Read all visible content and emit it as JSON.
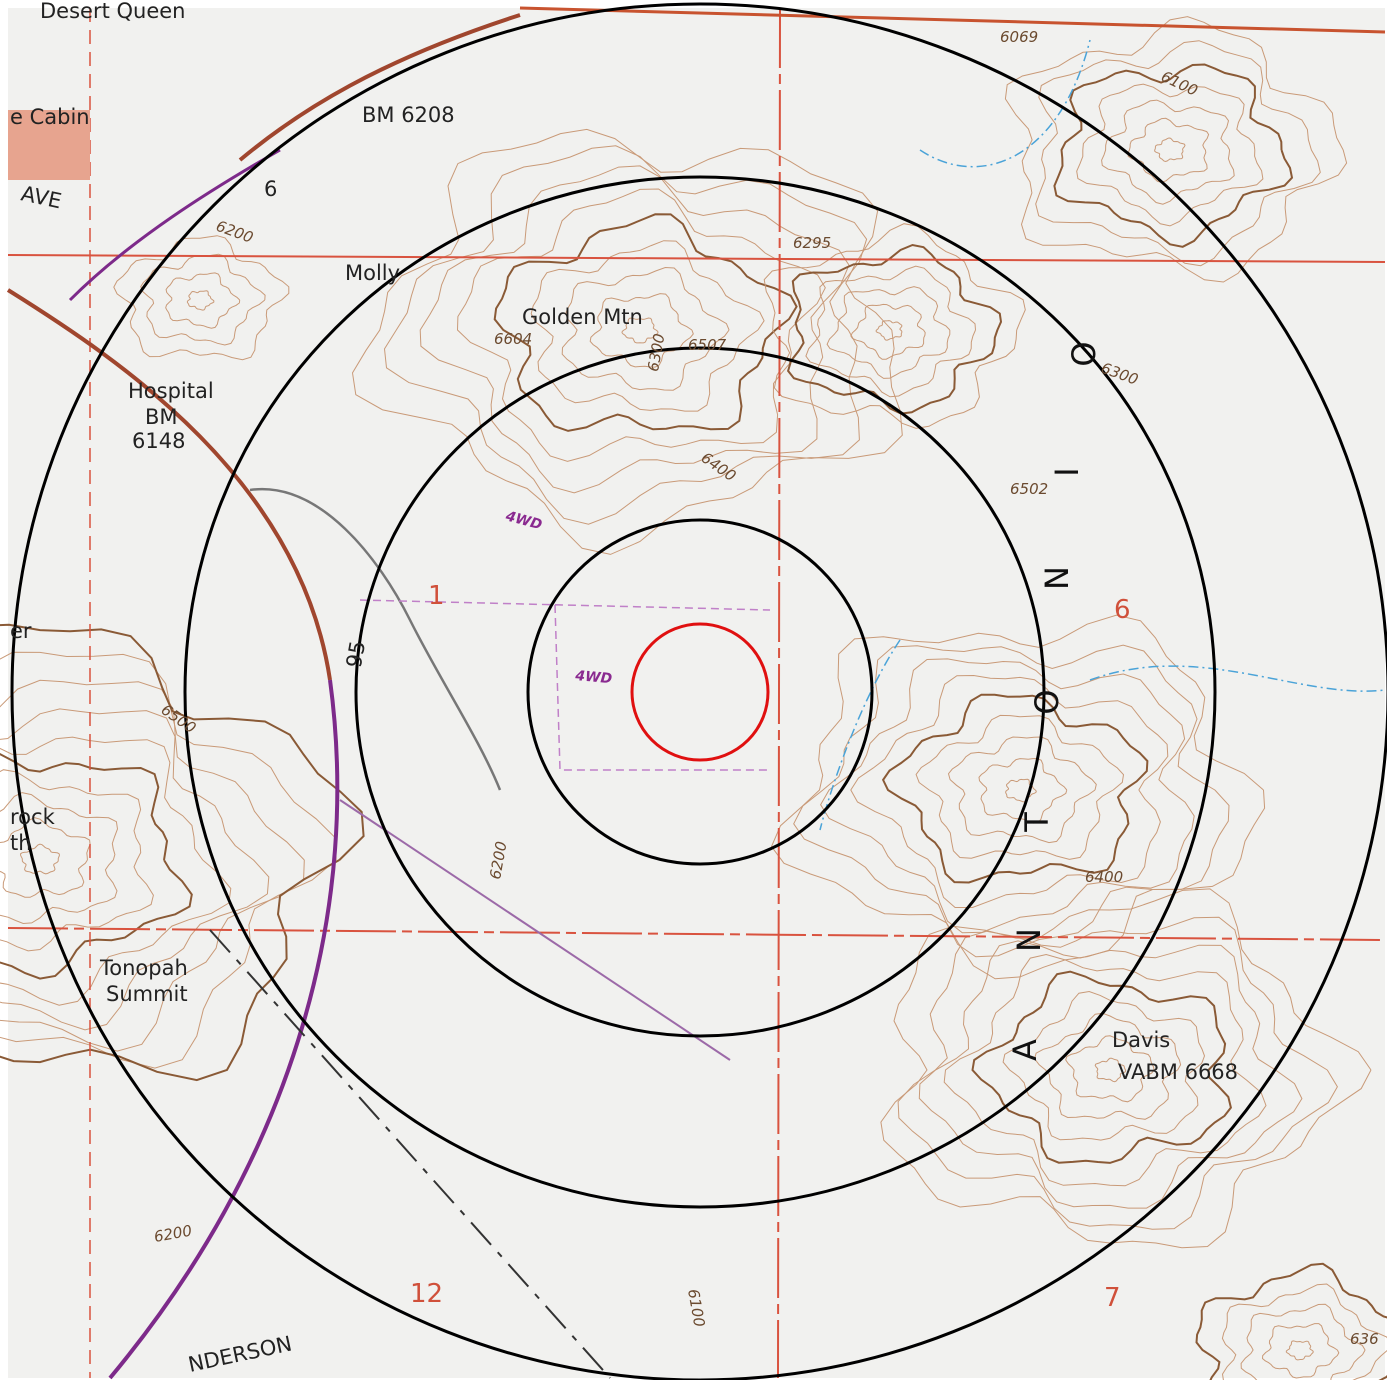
{
  "map": {
    "places": {
      "desert_queen": "Desert Queen",
      "cabin": "e Cabin",
      "molly": "Molly",
      "golden_mtn": "Golden Mtn",
      "hospital": "Hospital",
      "tonopah": "Tonopah",
      "summit": "Summit",
      "davis": "Davis",
      "rock": "rock",
      "rock_2": "th",
      "henderson": "NDERSON",
      "ave": "AVE",
      "other": "er"
    },
    "benchmarks": {
      "bm_6208": "BM  6208",
      "bm": "BM",
      "bm_6148": "6148",
      "vabm": "VABM  6668"
    },
    "elevations": [
      "6069",
      "6100",
      "6200",
      "6295",
      "6604",
      "6507",
      "6300",
      "6400",
      "6502",
      "6300",
      "6500",
      "6200",
      "6400",
      "6200",
      "6100",
      "636"
    ],
    "roads": [
      "4WD",
      "4WD"
    ],
    "routes": [
      "6",
      "95"
    ],
    "sections": [
      "1",
      "6",
      "12",
      "7"
    ],
    "valley_letters": [
      "A",
      "N",
      "T",
      "O",
      "N",
      "I",
      "O"
    ]
  }
}
